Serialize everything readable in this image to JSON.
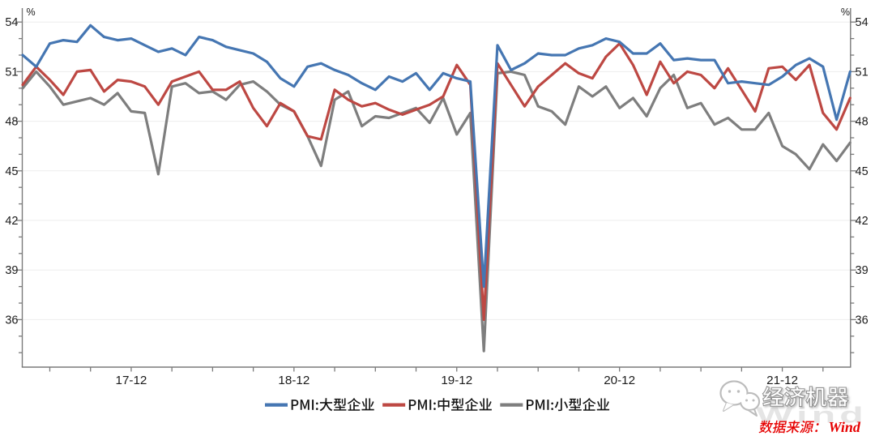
{
  "chart_data": {
    "type": "line",
    "unit_label": "%",
    "x": [
      "17-04",
      "17-05",
      "17-06",
      "17-07",
      "17-08",
      "17-09",
      "17-10",
      "17-11",
      "17-12",
      "18-01",
      "18-02",
      "18-03",
      "18-04",
      "18-05",
      "18-06",
      "18-07",
      "18-08",
      "18-09",
      "18-10",
      "18-11",
      "18-12",
      "19-01",
      "19-02",
      "19-03",
      "19-04",
      "19-05",
      "19-06",
      "19-07",
      "19-08",
      "19-09",
      "19-10",
      "19-11",
      "19-12",
      "20-01",
      "20-02",
      "20-03",
      "20-04",
      "20-05",
      "20-06",
      "20-07",
      "20-08",
      "20-09",
      "20-10",
      "20-11",
      "20-12",
      "21-01",
      "21-02",
      "21-03",
      "21-04",
      "21-05",
      "21-06",
      "21-07",
      "21-08",
      "21-09",
      "21-10",
      "21-11",
      "21-12",
      "22-01",
      "22-02",
      "22-03",
      "22-04",
      "22-05"
    ],
    "x_axis_tick_labels": [
      "17-12",
      "18-12",
      "19-12",
      "20-12",
      "21-12"
    ],
    "y_major_ticks": [
      36,
      39,
      42,
      45,
      48,
      51,
      54
    ],
    "y_minor_step": 1,
    "ylim": [
      33.1,
      54.9
    ],
    "grid": "horizontal-major",
    "legend_position": "bottom-center",
    "series": [
      {
        "name": "PMI:大型企业",
        "color": "#4576b2",
        "values": [
          52.0,
          51.3,
          52.7,
          52.9,
          52.8,
          53.8,
          53.1,
          52.9,
          53.0,
          52.6,
          52.2,
          52.4,
          52.0,
          53.1,
          52.9,
          52.5,
          52.3,
          52.1,
          51.6,
          50.6,
          50.1,
          51.3,
          51.5,
          51.1,
          50.8,
          50.3,
          49.9,
          50.7,
          50.4,
          50.9,
          49.9,
          50.9,
          50.6,
          50.4,
          38.0,
          52.6,
          51.1,
          51.5,
          52.1,
          52.0,
          52.0,
          52.4,
          52.6,
          53.0,
          52.8,
          52.1,
          52.1,
          52.7,
          51.7,
          51.8,
          51.7,
          51.7,
          50.3,
          50.4,
          50.3,
          50.2,
          50.7,
          51.4,
          51.8,
          51.3,
          48.1,
          51.0
        ]
      },
      {
        "name": "PMI:中型企业",
        "color": "#bd4843",
        "values": [
          50.2,
          51.3,
          50.5,
          49.6,
          51.0,
          51.1,
          49.8,
          50.5,
          50.4,
          50.1,
          49.0,
          50.4,
          50.7,
          51.0,
          49.9,
          49.9,
          50.4,
          48.8,
          47.7,
          49.1,
          48.6,
          47.1,
          46.9,
          49.9,
          49.3,
          48.9,
          49.1,
          48.7,
          48.4,
          48.7,
          49.0,
          49.5,
          51.4,
          50.2,
          36.0,
          51.5,
          50.2,
          48.9,
          50.1,
          50.8,
          51.5,
          50.9,
          50.6,
          51.9,
          52.7,
          51.4,
          49.6,
          51.6,
          50.3,
          51.0,
          50.8,
          50.0,
          51.2,
          49.9,
          48.6,
          51.2,
          51.3,
          50.5,
          51.4,
          48.5,
          47.5,
          49.4
        ]
      },
      {
        "name": "PMI:小型企业",
        "color": "#7e7e7e",
        "values": [
          50.0,
          51.0,
          50.1,
          49.0,
          49.2,
          49.4,
          49.0,
          49.7,
          48.6,
          48.5,
          44.8,
          50.1,
          50.3,
          49.7,
          49.8,
          49.3,
          50.2,
          50.4,
          49.8,
          49.0,
          48.6,
          47.1,
          45.3,
          49.3,
          49.8,
          47.7,
          48.3,
          48.2,
          48.5,
          48.8,
          47.9,
          49.4,
          47.2,
          48.5,
          34.1,
          50.9,
          51.0,
          50.8,
          48.9,
          48.6,
          47.8,
          50.1,
          49.5,
          50.1,
          48.8,
          49.4,
          48.3,
          50.0,
          50.8,
          48.8,
          49.1,
          47.8,
          48.2,
          47.5,
          47.5,
          48.5,
          46.5,
          46.0,
          45.1,
          46.6,
          45.6,
          46.7
        ]
      }
    ]
  },
  "footer": {
    "source_note": "数据来源：Wind",
    "source_note_color": "#e60000",
    "watermark": "Wind",
    "logo_text": "经济机器",
    "logo_icon": "wechat-bubbles-icon"
  }
}
